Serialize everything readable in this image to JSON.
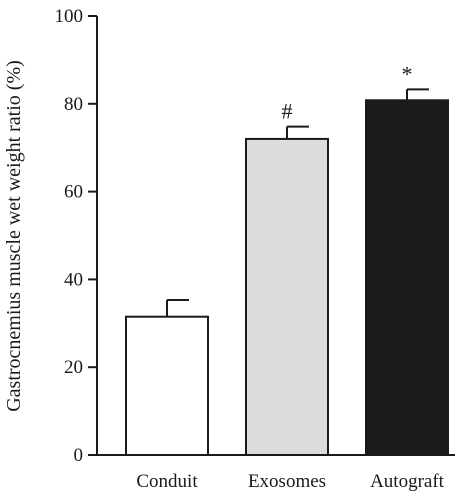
{
  "chart_data": {
    "type": "bar",
    "ylabel": "Gastrocnemius muscle wet weight ratio (%)",
    "xlabel": "",
    "ylim": [
      0,
      100
    ],
    "yticks": [
      0,
      20,
      40,
      60,
      80,
      100
    ],
    "categories": [
      "Conduit",
      "Exosomes",
      "Autograft"
    ],
    "values": [
      31.5,
      72,
      80.8
    ],
    "errors": [
      3.8,
      2.8,
      2.5
    ],
    "annotations": [
      "",
      "#",
      "*"
    ],
    "bar_colors": [
      "#ffffff",
      "#dcdcdc",
      "#1c1c1c"
    ],
    "grid": false,
    "legend": "none"
  }
}
